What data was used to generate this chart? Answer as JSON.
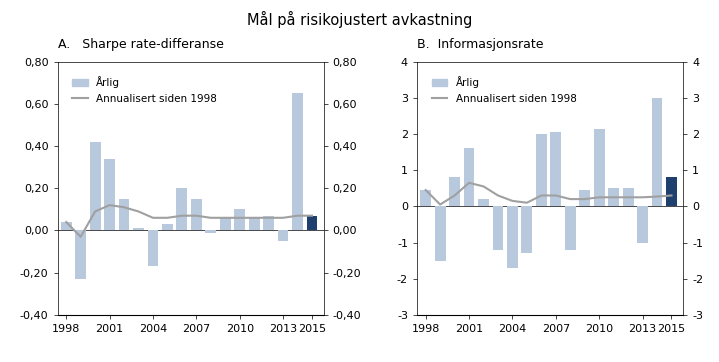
{
  "title": "Mål på risikojustert avkastning",
  "panel_A_title": "A.   Sharpe rate-differanse",
  "panel_B_title": "B.  Informasjonsrate",
  "legend_bar": "Årlig",
  "legend_line": "Annualisert siden 1998",
  "years": [
    1998,
    1999,
    2000,
    2001,
    2002,
    2003,
    2004,
    2005,
    2006,
    2007,
    2008,
    2009,
    2010,
    2011,
    2012,
    2013,
    2014,
    2015
  ],
  "sharpe_bars": [
    0.04,
    -0.23,
    0.42,
    0.34,
    0.15,
    0.01,
    -0.17,
    0.03,
    0.2,
    0.15,
    -0.01,
    0.06,
    0.1,
    0.06,
    0.07,
    -0.05,
    0.65,
    0.07
  ],
  "sharpe_line": [
    0.04,
    -0.03,
    0.09,
    0.12,
    0.11,
    0.09,
    0.06,
    0.06,
    0.07,
    0.07,
    0.06,
    0.06,
    0.06,
    0.06,
    0.06,
    0.06,
    0.07,
    0.07
  ],
  "info_bars": [
    0.45,
    -1.5,
    0.8,
    1.6,
    0.2,
    -1.2,
    -1.7,
    -1.3,
    2.0,
    2.05,
    -1.2,
    0.45,
    2.15,
    0.5,
    0.5,
    -1.0,
    3.0,
    0.8
  ],
  "info_line": [
    0.45,
    0.05,
    0.3,
    0.65,
    0.55,
    0.3,
    0.15,
    0.1,
    0.3,
    0.3,
    0.2,
    0.2,
    0.25,
    0.25,
    0.25,
    0.25,
    0.27,
    0.3
  ],
  "bar_color_light": "#b8c9dd",
  "bar_color_dark": "#1f3f6e",
  "line_color": "#a0a0a0",
  "sharpe_ylim": [
    -0.4,
    0.8
  ],
  "sharpe_yticks": [
    -0.4,
    -0.2,
    0.0,
    0.2,
    0.4,
    0.6,
    0.8
  ],
  "info_ylim": [
    -3,
    4
  ],
  "info_yticks": [
    -3,
    -2,
    -1,
    0,
    1,
    2,
    3,
    4
  ],
  "xtick_years": [
    1998,
    2001,
    2004,
    2007,
    2010,
    2013,
    2015
  ],
  "xtick_labels": [
    "1998",
    "2001",
    "2004",
    "2007",
    "2010",
    "2013",
    "2015"
  ]
}
